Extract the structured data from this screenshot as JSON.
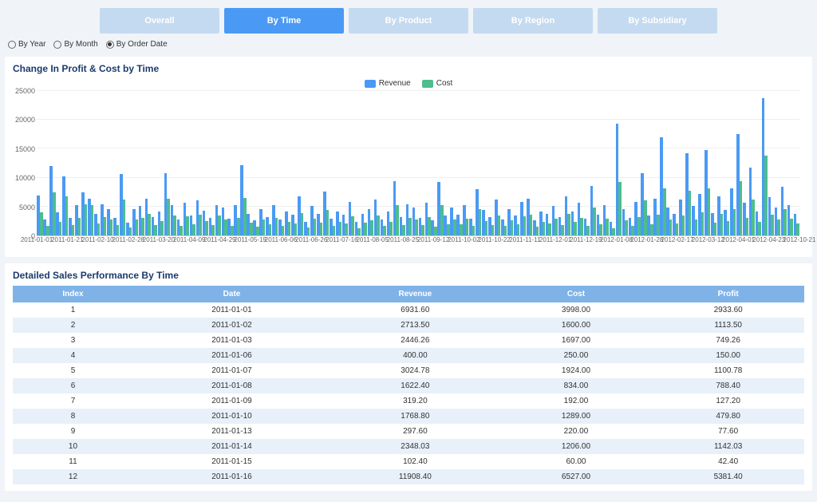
{
  "tabs": {
    "items": [
      {
        "label": "Overall",
        "active": false
      },
      {
        "label": "By Time",
        "active": true
      },
      {
        "label": "By Product",
        "active": false
      },
      {
        "label": "By Region",
        "active": false
      },
      {
        "label": "By Subsidiary",
        "active": false
      }
    ]
  },
  "radios": {
    "items": [
      {
        "label": "By Year",
        "checked": false
      },
      {
        "label": "By Month",
        "checked": false
      },
      {
        "label": "By Order Date",
        "checked": true
      }
    ]
  },
  "chart": {
    "title": "Change In Profit & Cost by Time",
    "type": "grouped-bar",
    "legend": [
      {
        "label": "Revenue",
        "color": "#4a9af5"
      },
      {
        "label": "Cost",
        "color": "#4dbd8e"
      }
    ],
    "y_axis_label": "",
    "ylim": [
      0,
      25000
    ],
    "yticks": [
      0,
      5000,
      10000,
      15000,
      20000,
      25000
    ],
    "background_color": "#ffffff",
    "grid_color": "#eeeeee",
    "bar_colors": {
      "revenue": "#4a9af5",
      "cost": "#4dbd8e"
    },
    "x_labels": [
      "2011-01-01",
      "2011-01-21",
      "2011-02-10",
      "2011-02-28",
      "2011-03-20",
      "2011-04-09",
      "2011-04-29",
      "2011-05-19",
      "2011-06-06",
      "2011-06-26",
      "2011-07-16",
      "2011-08-05",
      "2011-08-25",
      "2011-09-12",
      "2011-10-02",
      "2011-10-22",
      "2011-11-11",
      "2011-12-01",
      "2011-12-19",
      "2012-01-08",
      "2012-01-28",
      "2012-02-17",
      "2012-03-12",
      "2012-04-01",
      "2012-04-23",
      "2012-10-21"
    ],
    "data": [
      {
        "r": 6900,
        "c": 4000
      },
      {
        "r": 2700,
        "c": 1600
      },
      {
        "r": 12000,
        "c": 7500
      },
      {
        "r": 4000,
        "c": 2400
      },
      {
        "r": 10200,
        "c": 6800
      },
      {
        "r": 3000,
        "c": 1800
      },
      {
        "r": 5200,
        "c": 3100
      },
      {
        "r": 7500,
        "c": 5400
      },
      {
        "r": 6400,
        "c": 5200
      },
      {
        "r": 3800,
        "c": 2100
      },
      {
        "r": 5400,
        "c": 3200
      },
      {
        "r": 4600,
        "c": 2700
      },
      {
        "r": 3000,
        "c": 1800
      },
      {
        "r": 10600,
        "c": 6200
      },
      {
        "r": 2200,
        "c": 1400
      },
      {
        "r": 4600,
        "c": 2700
      },
      {
        "r": 5100,
        "c": 3000
      },
      {
        "r": 6400,
        "c": 3700
      },
      {
        "r": 3200,
        "c": 1800
      },
      {
        "r": 4200,
        "c": 2500
      },
      {
        "r": 10800,
        "c": 6400
      },
      {
        "r": 5200,
        "c": 3500
      },
      {
        "r": 2800,
        "c": 1600
      },
      {
        "r": 5600,
        "c": 3300
      },
      {
        "r": 3400,
        "c": 2000
      },
      {
        "r": 6100,
        "c": 3600
      },
      {
        "r": 4300,
        "c": 2500
      },
      {
        "r": 3100,
        "c": 1800
      },
      {
        "r": 5200,
        "c": 3400
      },
      {
        "r": 4800,
        "c": 2800
      },
      {
        "r": 2900,
        "c": 1700
      },
      {
        "r": 5200,
        "c": 3000
      },
      {
        "r": 12200,
        "c": 6500
      },
      {
        "r": 3800,
        "c": 2200
      },
      {
        "r": 2600,
        "c": 1500
      },
      {
        "r": 4600,
        "c": 2700
      },
      {
        "r": 3200,
        "c": 1900
      },
      {
        "r": 5200,
        "c": 3000
      },
      {
        "r": 2800,
        "c": 1600
      },
      {
        "r": 4100,
        "c": 2400
      },
      {
        "r": 3600,
        "c": 2100
      },
      {
        "r": 6800,
        "c": 3900
      },
      {
        "r": 2400,
        "c": 1400
      },
      {
        "r": 5100,
        "c": 2900
      },
      {
        "r": 3800,
        "c": 2200
      },
      {
        "r": 7600,
        "c": 4400
      },
      {
        "r": 2900,
        "c": 1700
      },
      {
        "r": 4200,
        "c": 2400
      },
      {
        "r": 3600,
        "c": 2100
      },
      {
        "r": 5800,
        "c": 3300
      },
      {
        "r": 2300,
        "c": 1300
      },
      {
        "r": 3800,
        "c": 2200
      },
      {
        "r": 4600,
        "c": 2600
      },
      {
        "r": 6200,
        "c": 3500
      },
      {
        "r": 2800,
        "c": 1600
      },
      {
        "r": 4100,
        "c": 2300
      },
      {
        "r": 9400,
        "c": 5200
      },
      {
        "r": 3200,
        "c": 1800
      },
      {
        "r": 5400,
        "c": 3100
      },
      {
        "r": 4800,
        "c": 2700
      },
      {
        "r": 3100,
        "c": 1800
      },
      {
        "r": 5600,
        "c": 3200
      },
      {
        "r": 2600,
        "c": 1500
      },
      {
        "r": 9200,
        "c": 5300
      },
      {
        "r": 3400,
        "c": 1900
      },
      {
        "r": 4800,
        "c": 2700
      },
      {
        "r": 3600,
        "c": 2000
      },
      {
        "r": 5200,
        "c": 2900
      },
      {
        "r": 2900,
        "c": 1600
      },
      {
        "r": 8000,
        "c": 4600
      },
      {
        "r": 4400,
        "c": 2500
      },
      {
        "r": 3200,
        "c": 1800
      },
      {
        "r": 6200,
        "c": 3500
      },
      {
        "r": 2800,
        "c": 1600
      },
      {
        "r": 4600,
        "c": 2600
      },
      {
        "r": 3400,
        "c": 1900
      },
      {
        "r": 5800,
        "c": 3300
      },
      {
        "r": 6400,
        "c": 3600
      },
      {
        "r": 2600,
        "c": 1500
      },
      {
        "r": 4200,
        "c": 2400
      },
      {
        "r": 3800,
        "c": 2100
      },
      {
        "r": 5100,
        "c": 2900
      },
      {
        "r": 3200,
        "c": 1800
      },
      {
        "r": 6800,
        "c": 3800
      },
      {
        "r": 4100,
        "c": 2300
      },
      {
        "r": 5600,
        "c": 3100
      },
      {
        "r": 2900,
        "c": 1600
      },
      {
        "r": 8600,
        "c": 4900
      },
      {
        "r": 3600,
        "c": 2000
      },
      {
        "r": 5200,
        "c": 2900
      },
      {
        "r": 2400,
        "c": 1300
      },
      {
        "r": 19300,
        "c": 9200
      },
      {
        "r": 4600,
        "c": 2600
      },
      {
        "r": 3100,
        "c": 1700
      },
      {
        "r": 5800,
        "c": 3200
      },
      {
        "r": 10800,
        "c": 6100
      },
      {
        "r": 3400,
        "c": 1900
      },
      {
        "r": 6400,
        "c": 3600
      },
      {
        "r": 17000,
        "c": 8200
      },
      {
        "r": 4800,
        "c": 2700
      },
      {
        "r": 3800,
        "c": 2100
      },
      {
        "r": 6200,
        "c": 3400
      },
      {
        "r": 14200,
        "c": 7800
      },
      {
        "r": 5100,
        "c": 2800
      },
      {
        "r": 7200,
        "c": 4000
      },
      {
        "r": 14800,
        "c": 8100
      },
      {
        "r": 3900,
        "c": 2200
      },
      {
        "r": 6800,
        "c": 3700
      },
      {
        "r": 4400,
        "c": 2500
      },
      {
        "r": 8200,
        "c": 4500
      },
      {
        "r": 17600,
        "c": 9400
      },
      {
        "r": 5600,
        "c": 3100
      },
      {
        "r": 11800,
        "c": 6200
      },
      {
        "r": 4200,
        "c": 2300
      },
      {
        "r": 23800,
        "c": 13800
      },
      {
        "r": 6600,
        "c": 3600
      },
      {
        "r": 4800,
        "c": 2700
      },
      {
        "r": 8400,
        "c": 4600
      },
      {
        "r": 5200,
        "c": 2900
      },
      {
        "r": 3800,
        "c": 2100
      }
    ]
  },
  "table": {
    "title": "Detailed Sales Performance By Time",
    "columns": [
      "Index",
      "Date",
      "Revenue",
      "Cost",
      "Profit"
    ],
    "header_bg": "#7fb3e8",
    "header_color": "#ffffff",
    "row_alt_bg": "#e8f0fa",
    "rows": [
      [
        "1",
        "2011-01-01",
        "6931.60",
        "3998.00",
        "2933.60"
      ],
      [
        "2",
        "2011-01-02",
        "2713.50",
        "1600.00",
        "1113.50"
      ],
      [
        "3",
        "2011-01-03",
        "2446.26",
        "1697.00",
        "749.26"
      ],
      [
        "4",
        "2011-01-06",
        "400.00",
        "250.00",
        "150.00"
      ],
      [
        "5",
        "2011-01-07",
        "3024.78",
        "1924.00",
        "1100.78"
      ],
      [
        "6",
        "2011-01-08",
        "1622.40",
        "834.00",
        "788.40"
      ],
      [
        "7",
        "2011-01-09",
        "319.20",
        "192.00",
        "127.20"
      ],
      [
        "8",
        "2011-01-10",
        "1768.80",
        "1289.00",
        "479.80"
      ],
      [
        "9",
        "2011-01-13",
        "297.60",
        "220.00",
        "77.60"
      ],
      [
        "10",
        "2011-01-14",
        "2348.03",
        "1206.00",
        "1142.03"
      ],
      [
        "11",
        "2011-01-15",
        "102.40",
        "60.00",
        "42.40"
      ],
      [
        "12",
        "2011-01-16",
        "11908.40",
        "6527.00",
        "5381.40"
      ]
    ]
  }
}
